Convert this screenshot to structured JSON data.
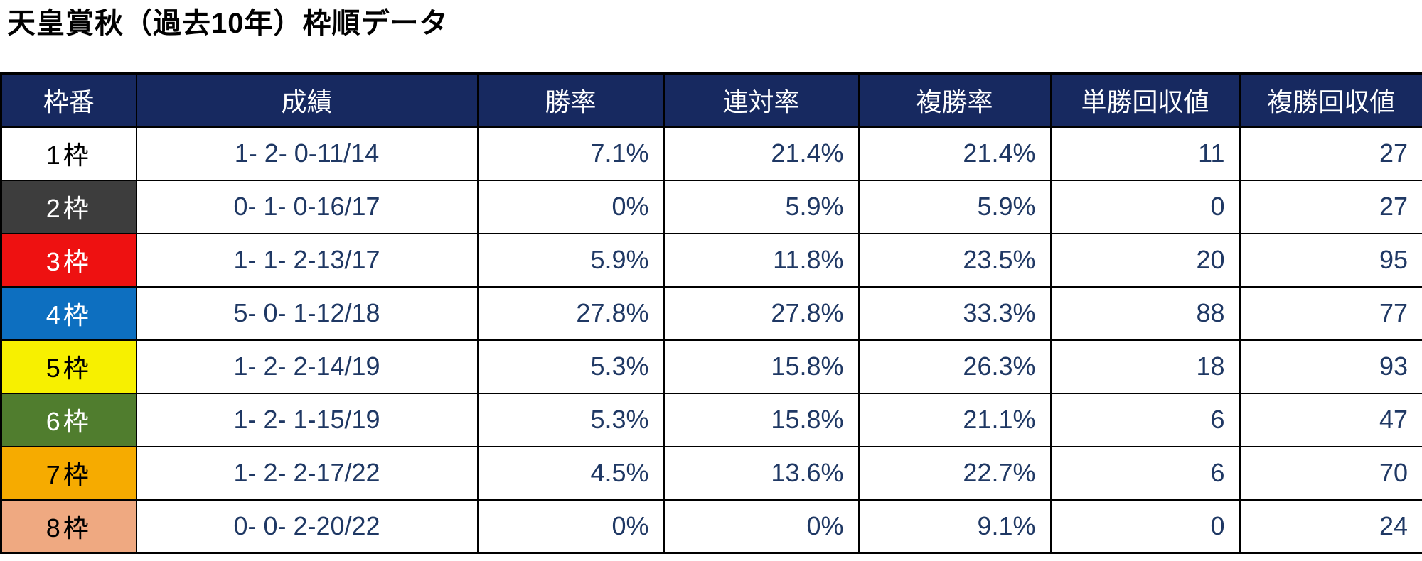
{
  "title": "天皇賞秋（過去10年）枠順データ",
  "colors": {
    "header_bg": "#172960",
    "header_fg": "#ffffff",
    "value_fg": "#1f3864",
    "border": "#000000"
  },
  "table": {
    "headers": [
      "枠番",
      "成績",
      "勝率",
      "連対率",
      "複勝率",
      "単勝回収値",
      "複勝回収値"
    ],
    "rows": [
      {
        "frame": "1枠",
        "frame_bg": "#ffffff",
        "frame_fg": "#000000",
        "values": [
          "1- 2- 0-11/14",
          "7.1%",
          "21.4%",
          "21.4%",
          "11",
          "27"
        ]
      },
      {
        "frame": "2枠",
        "frame_bg": "#3d3d3d",
        "frame_fg": "#ffffff",
        "values": [
          "0- 1- 0-16/17",
          "0%",
          "5.9%",
          "5.9%",
          "0",
          "27"
        ]
      },
      {
        "frame": "3枠",
        "frame_bg": "#ee1111",
        "frame_fg": "#ffffff",
        "values": [
          "1- 1- 2-13/17",
          "5.9%",
          "11.8%",
          "23.5%",
          "20",
          "95"
        ]
      },
      {
        "frame": "4枠",
        "frame_bg": "#0d6fc0",
        "frame_fg": "#ffffff",
        "values": [
          "5- 0- 1-12/18",
          "27.8%",
          "27.8%",
          "33.3%",
          "88",
          "77"
        ]
      },
      {
        "frame": "5枠",
        "frame_bg": "#f7f000",
        "frame_fg": "#000000",
        "values": [
          "1- 2- 2-14/19",
          "5.3%",
          "15.8%",
          "26.3%",
          "18",
          "93"
        ]
      },
      {
        "frame": "6枠",
        "frame_bg": "#507d2e",
        "frame_fg": "#ffffff",
        "values": [
          "1- 2- 1-15/19",
          "5.3%",
          "15.8%",
          "21.1%",
          "6",
          "47"
        ]
      },
      {
        "frame": "7枠",
        "frame_bg": "#f6ab00",
        "frame_fg": "#000000",
        "values": [
          "1- 2- 2-17/22",
          "4.5%",
          "13.6%",
          "22.7%",
          "6",
          "70"
        ]
      },
      {
        "frame": "8枠",
        "frame_bg": "#efa981",
        "frame_fg": "#000000",
        "values": [
          "0- 0- 2-20/22",
          "0%",
          "0%",
          "9.1%",
          "0",
          "24"
        ]
      }
    ]
  },
  "chart_data": {
    "type": "table",
    "title": "天皇賞秋（過去10年）枠順データ",
    "columns": [
      "枠番",
      "成績",
      "勝率",
      "連対率",
      "複勝率",
      "単勝回収値",
      "複勝回収値"
    ],
    "rows": [
      [
        "1枠",
        "1- 2- 0-11/14",
        "7.1%",
        "21.4%",
        "21.4%",
        "11",
        "27"
      ],
      [
        "2枠",
        "0- 1- 0-16/17",
        "0%",
        "5.9%",
        "5.9%",
        "0",
        "27"
      ],
      [
        "3枠",
        "1- 1- 2-13/17",
        "5.9%",
        "11.8%",
        "23.5%",
        "20",
        "95"
      ],
      [
        "4枠",
        "5- 0- 1-12/18",
        "27.8%",
        "27.8%",
        "33.3%",
        "88",
        "77"
      ],
      [
        "5枠",
        "1- 2- 2-14/19",
        "5.3%",
        "15.8%",
        "26.3%",
        "18",
        "93"
      ],
      [
        "6枠",
        "1- 2- 1-15/19",
        "5.3%",
        "15.8%",
        "21.1%",
        "6",
        "47"
      ],
      [
        "7枠",
        "1- 2- 2-17/22",
        "4.5%",
        "13.6%",
        "22.7%",
        "6",
        "70"
      ],
      [
        "8枠",
        "0- 0- 2-20/22",
        "0%",
        "0%",
        "9.1%",
        "0",
        "24"
      ]
    ],
    "frame_colors": [
      "#ffffff",
      "#3d3d3d",
      "#ee1111",
      "#0d6fc0",
      "#f7f000",
      "#507d2e",
      "#f6ab00",
      "#efa981"
    ]
  }
}
